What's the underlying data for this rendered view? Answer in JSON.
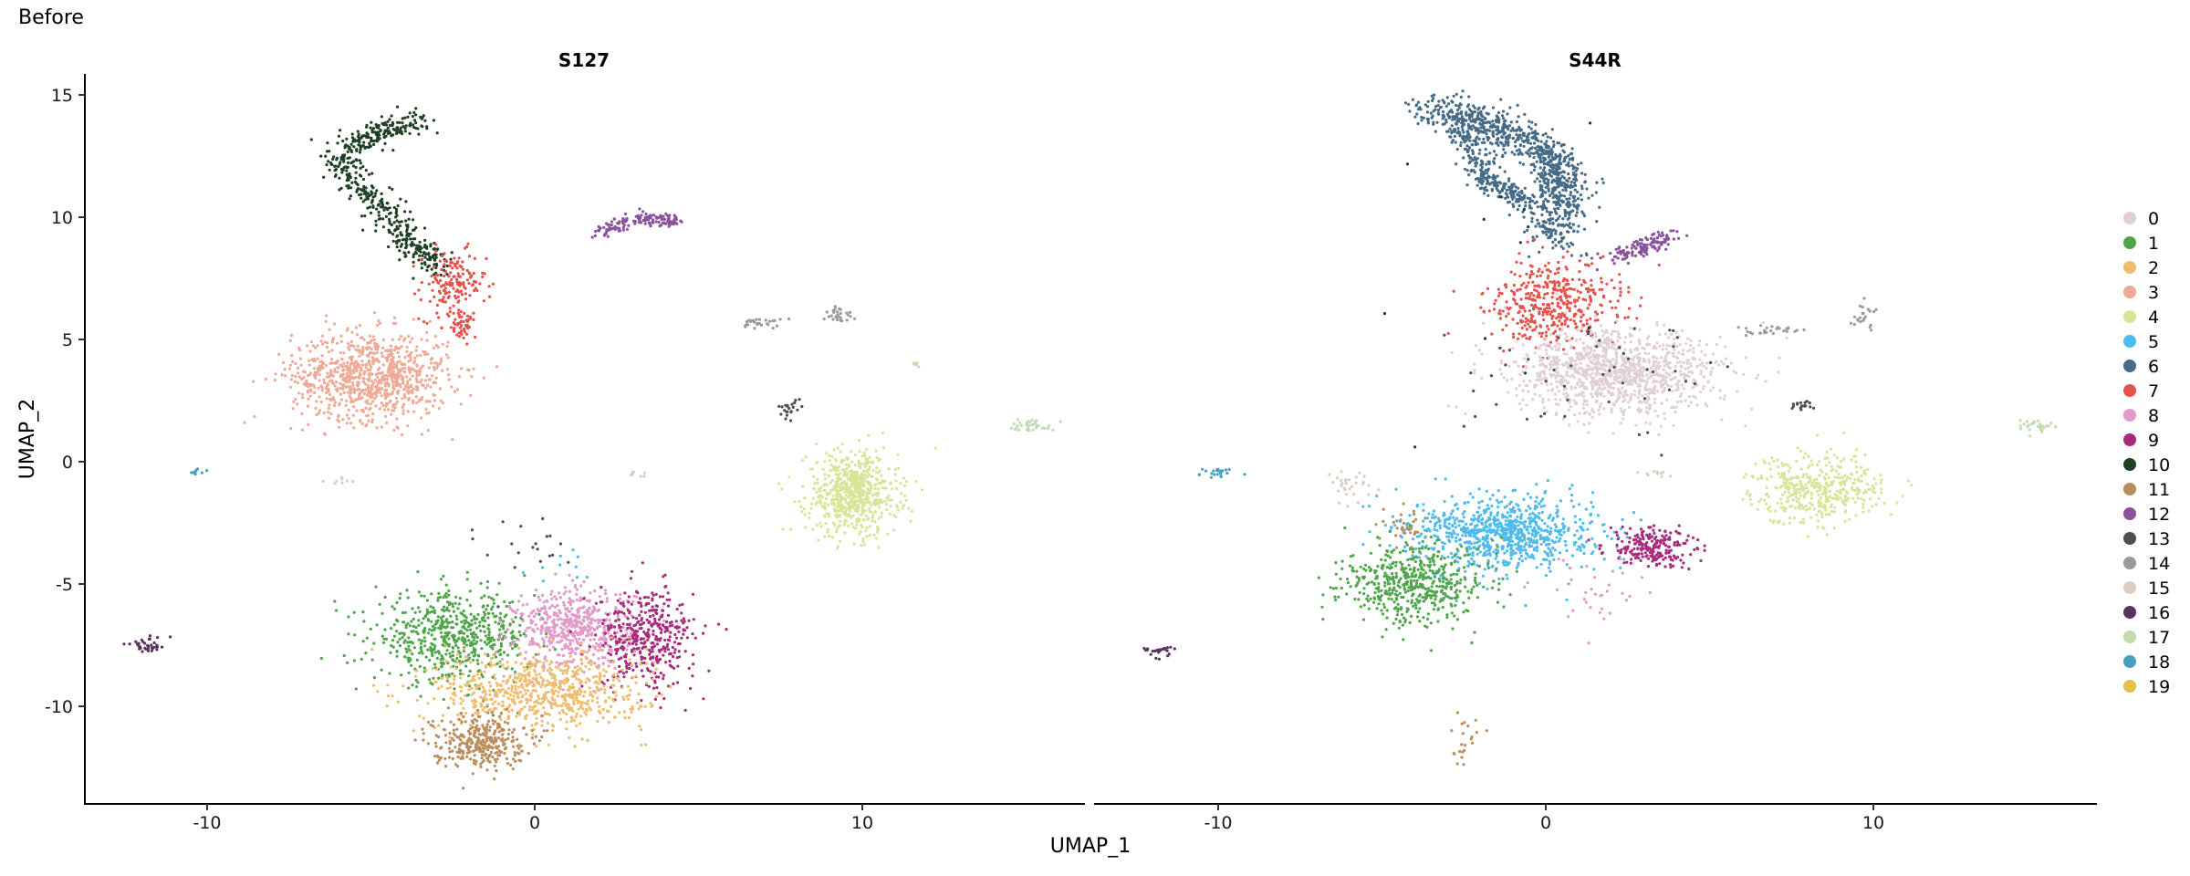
{
  "figure_title": "Before",
  "colors": {
    "0": "#e0cfd8",
    "1": "#4fa64a",
    "2": "#efbd70",
    "3": "#eeaa96",
    "4": "#d6e59a",
    "5": "#4ebcea",
    "6": "#456b86",
    "7": "#e5524c",
    "8": "#e29ac8",
    "9": "#a82c7c",
    "10": "#1f4023",
    "11": "#b98d5d",
    "12": "#8a519c",
    "13": "#4f4f4f",
    "14": "#9a9a9a",
    "15": "#dccdc0",
    "16": "#5a325f",
    "17": "#c2dcb0",
    "18": "#4a9fbf",
    "19": "#e4c048"
  },
  "chart_data": {
    "type": "scatter",
    "xlabel": "UMAP_1",
    "ylabel": "UMAP_2",
    "xlim": [
      -14,
      16
    ],
    "ylim": [
      -14,
      16
    ],
    "x_ticks": [
      -10,
      0,
      10
    ],
    "y_ticks": [
      15,
      10,
      5,
      0,
      -5,
      -10
    ],
    "grid": false,
    "legend": {
      "position": "right",
      "entries": [
        "0",
        "1",
        "2",
        "3",
        "4",
        "5",
        "6",
        "7",
        "8",
        "9",
        "10",
        "11",
        "12",
        "13",
        "14",
        "15",
        "16",
        "17",
        "18",
        "19"
      ]
    },
    "facets": [
      {
        "title": "S127",
        "clusters": [
          {
            "cluster": "10",
            "n": 520,
            "shape": "arc",
            "pts": [
              [
                -3.4,
                14
              ],
              [
                -4.8,
                13.5
              ],
              [
                -6,
                12.3
              ],
              [
                -4.8,
                10.5
              ],
              [
                -3.8,
                9
              ],
              [
                -3,
                8
              ]
            ],
            "spread": 0.3
          },
          {
            "cluster": "7",
            "n": 160,
            "center": [
              -2.5,
              7.2
            ],
            "sd": [
              0.5,
              0.7
            ]
          },
          {
            "cluster": "7",
            "n": 45,
            "center": [
              -2.3,
              5.6
            ],
            "sd": [
              0.25,
              0.3
            ]
          },
          {
            "cluster": "12",
            "n": 140,
            "shape": "arc",
            "pts": [
              [
                2,
                9.4
              ],
              [
                3.2,
                10
              ],
              [
                4.4,
                9.8
              ]
            ],
            "spread": 0.18
          },
          {
            "cluster": "3",
            "n": 900,
            "center": [
              -5,
              3.5
            ],
            "sd": [
              1.2,
              0.9
            ]
          },
          {
            "cluster": "14",
            "n": 28,
            "center": [
              6.9,
              5.7
            ],
            "sd": [
              0.3,
              0.12
            ]
          },
          {
            "cluster": "14",
            "n": 28,
            "center": [
              9.3,
              6
            ],
            "sd": [
              0.2,
              0.2
            ]
          },
          {
            "cluster": "13",
            "n": 22,
            "center": [
              7.8,
              2.2
            ],
            "sd": [
              0.18,
              0.18
            ]
          },
          {
            "cluster": "17",
            "n": 35,
            "center": [
              15.2,
              1.5
            ],
            "sd": [
              0.35,
              0.12
            ]
          },
          {
            "cluster": "17",
            "n": 6,
            "center": [
              11.6,
              4
            ],
            "sd": [
              0.1,
              0.1
            ]
          },
          {
            "cluster": "4",
            "n": 650,
            "center": [
              9.7,
              -1.3
            ],
            "sd": [
              0.7,
              0.85
            ]
          },
          {
            "cluster": "18",
            "n": 10,
            "center": [
              -10.3,
              -0.4
            ],
            "sd": [
              0.12,
              0.08
            ]
          },
          {
            "cluster": "15",
            "n": 8,
            "center": [
              -5.8,
              -0.8
            ],
            "sd": [
              0.3,
              0.1
            ]
          },
          {
            "cluster": "15",
            "n": 8,
            "center": [
              3.2,
              -0.5
            ],
            "sd": [
              0.2,
              0.1
            ]
          },
          {
            "cluster": "16",
            "n": 35,
            "center": [
              -11.8,
              -7.5
            ],
            "sd": [
              0.35,
              0.15
            ]
          },
          {
            "cluster": "1",
            "n": 600,
            "center": [
              -2.5,
              -7.2
            ],
            "sd": [
              1.2,
              0.9
            ]
          },
          {
            "cluster": "8",
            "n": 550,
            "center": [
              1.2,
              -6.8
            ],
            "sd": [
              0.9,
              0.8
            ]
          },
          {
            "cluster": "9",
            "n": 420,
            "center": [
              3.4,
              -7.2
            ],
            "sd": [
              0.75,
              1.0
            ]
          },
          {
            "cluster": "2",
            "n": 700,
            "center": [
              0.2,
              -9.4
            ],
            "sd": [
              1.6,
              0.8
            ]
          },
          {
            "cluster": "11",
            "n": 320,
            "center": [
              -1.7,
              -11.4
            ],
            "sd": [
              0.7,
              0.55
            ]
          },
          {
            "cluster": "13",
            "n": 20,
            "center": [
              0,
              -3.5
            ],
            "sd": [
              1.5,
              0.8
            ]
          },
          {
            "cluster": "5",
            "n": 10,
            "center": [
              0.8,
              -4.5
            ],
            "sd": [
              0.5,
              0.4
            ]
          }
        ]
      },
      {
        "title": "S44R",
        "clusters": [
          {
            "cluster": "6",
            "n": 900,
            "shape": "arc",
            "pts": [
              [
                -3.5,
                14.4
              ],
              [
                -1.5,
                13.8
              ],
              [
                0.2,
                12.6
              ],
              [
                0.5,
                11
              ],
              [
                0.3,
                9
              ]
            ],
            "spread": 0.45
          },
          {
            "cluster": "6",
            "n": 250,
            "shape": "arc",
            "pts": [
              [
                -2.5,
                13.5
              ],
              [
                -1.8,
                11.5
              ],
              [
                -0.5,
                10.5
              ]
            ],
            "spread": 0.25
          },
          {
            "cluster": "7",
            "n": 420,
            "center": [
              0.3,
              6.5
            ],
            "sd": [
              1.0,
              0.8
            ]
          },
          {
            "cluster": "12",
            "n": 130,
            "shape": "arc",
            "pts": [
              [
                1.8,
                8.2
              ],
              [
                3,
                8.8
              ],
              [
                3.8,
                9.2
              ]
            ],
            "spread": 0.22
          },
          {
            "cluster": "0",
            "n": 1100,
            "center": [
              2.2,
              3.6
            ],
            "sd": [
              1.6,
              0.85
            ]
          },
          {
            "cluster": "13",
            "n": 50,
            "center": [
              1.5,
              3.1
            ],
            "sd": [
              2.0,
              1.2
            ]
          },
          {
            "cluster": "14",
            "n": 28,
            "center": [
              7,
              5.4
            ],
            "sd": [
              0.45,
              0.12
            ]
          },
          {
            "cluster": "14",
            "n": 22,
            "center": [
              9.7,
              6
            ],
            "sd": [
              0.2,
              0.25
            ]
          },
          {
            "cluster": "13",
            "n": 18,
            "center": [
              7.8,
              2.3
            ],
            "sd": [
              0.2,
              0.12
            ]
          },
          {
            "cluster": "17",
            "n": 28,
            "center": [
              14.9,
              1.5
            ],
            "sd": [
              0.35,
              0.15
            ]
          },
          {
            "cluster": "4",
            "n": 420,
            "center": [
              8.3,
              -1.1
            ],
            "sd": [
              1.0,
              0.7
            ]
          },
          {
            "cluster": "18",
            "n": 24,
            "center": [
              -10,
              -0.45
            ],
            "sd": [
              0.35,
              0.08
            ]
          },
          {
            "cluster": "15",
            "n": 32,
            "center": [
              -6,
              -1.1
            ],
            "sd": [
              0.4,
              0.3
            ]
          },
          {
            "cluster": "15",
            "n": 10,
            "center": [
              3.3,
              -0.5
            ],
            "sd": [
              0.2,
              0.1
            ]
          },
          {
            "cluster": "16",
            "n": 25,
            "center": [
              -11.8,
              -7.7
            ],
            "sd": [
              0.25,
              0.12
            ]
          },
          {
            "cluster": "11",
            "n": 40,
            "center": [
              -4.2,
              -2.6
            ],
            "sd": [
              0.35,
              0.4
            ]
          },
          {
            "cluster": "5",
            "n": 850,
            "center": [
              -1.2,
              -2.9
            ],
            "sd": [
              1.4,
              0.75
            ]
          },
          {
            "cluster": "1",
            "n": 520,
            "center": [
              -4,
              -5
            ],
            "sd": [
              1.1,
              0.8
            ]
          },
          {
            "cluster": "9",
            "n": 220,
            "center": [
              3.2,
              -3.5
            ],
            "sd": [
              0.65,
              0.4
            ]
          },
          {
            "cluster": "8",
            "n": 35,
            "center": [
              1.8,
              -5.3
            ],
            "sd": [
              1.0,
              0.8
            ]
          },
          {
            "cluster": "11",
            "n": 22,
            "center": [
              -2.5,
              -11.5
            ],
            "sd": [
              0.25,
              0.45
            ]
          },
          {
            "cluster": "10",
            "n": 12,
            "center": [
              -2.5,
              7.5
            ],
            "sd": [
              2.5,
              3.0
            ]
          }
        ]
      }
    ]
  }
}
